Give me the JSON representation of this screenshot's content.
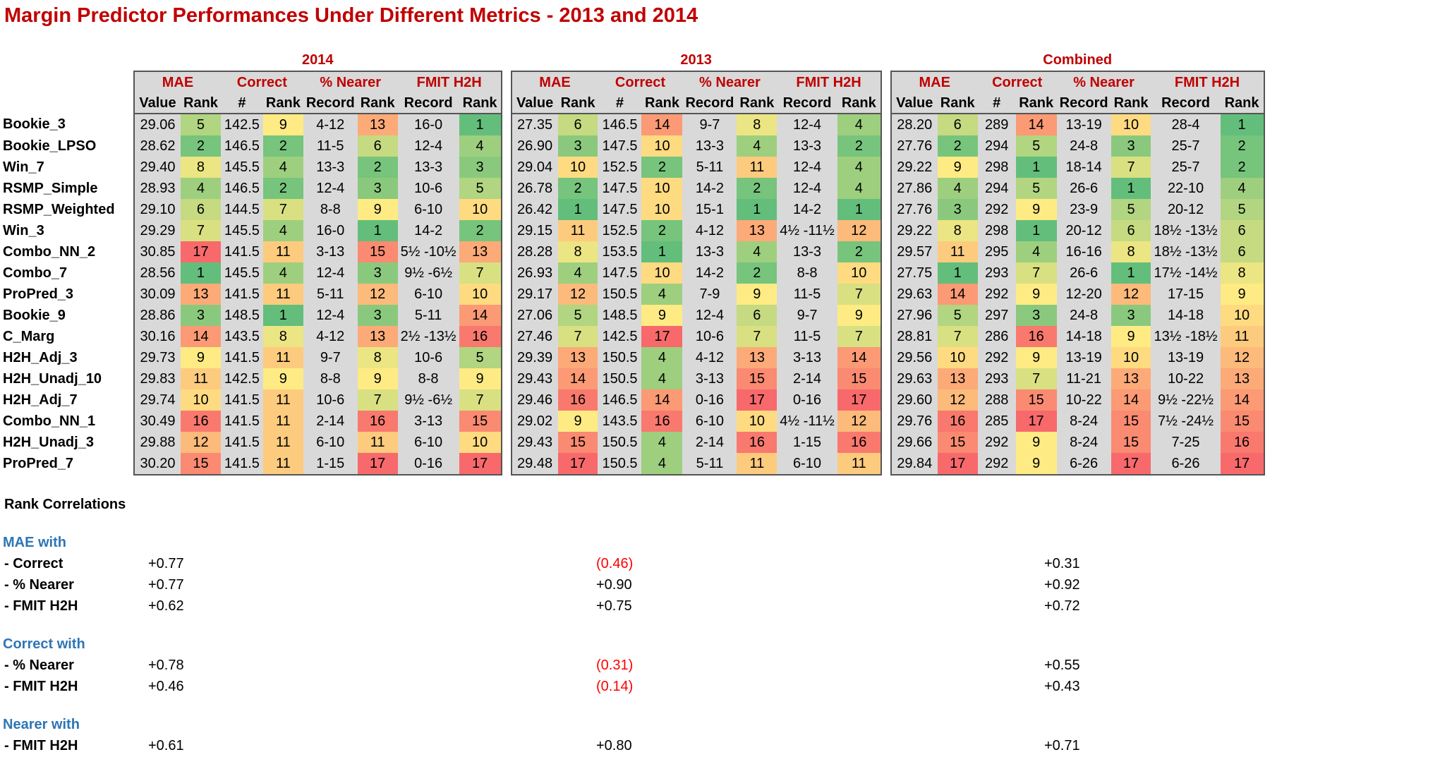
{
  "title": "Margin Predictor Performances Under Different Metrics - 2013 and 2014",
  "groups": [
    "2014",
    "2013",
    "Combined"
  ],
  "metric_headers": [
    "MAE",
    "Correct",
    "% Nearer",
    "FMIT H2H"
  ],
  "sub_headers": [
    "Value",
    "Rank",
    "#",
    "Rank",
    "Record",
    "Rank",
    "Record",
    "Rank"
  ],
  "rows": [
    {
      "name": "Bookie_3",
      "g": [
        [
          "29.06",
          "5",
          "142.5",
          "9",
          "4-12",
          "13",
          "16-0",
          "1"
        ],
        [
          "27.35",
          "6",
          "146.5",
          "14",
          "9-7",
          "8",
          "12-4",
          "4"
        ],
        [
          "28.20",
          "6",
          "289",
          "14",
          "13-19",
          "10",
          "28-4",
          "1"
        ]
      ]
    },
    {
      "name": "Bookie_LPSO",
      "g": [
        [
          "28.62",
          "2",
          "146.5",
          "2",
          "11-5",
          "6",
          "12-4",
          "4"
        ],
        [
          "26.90",
          "3",
          "147.5",
          "10",
          "13-3",
          "4",
          "13-3",
          "2"
        ],
        [
          "27.76",
          "2",
          "294",
          "5",
          "24-8",
          "3",
          "25-7",
          "2"
        ]
      ]
    },
    {
      "name": "Win_7",
      "g": [
        [
          "29.40",
          "8",
          "145.5",
          "4",
          "13-3",
          "2",
          "13-3",
          "3"
        ],
        [
          "29.04",
          "10",
          "152.5",
          "2",
          "5-11",
          "11",
          "12-4",
          "4"
        ],
        [
          "29.22",
          "9",
          "298",
          "1",
          "18-14",
          "7",
          "25-7",
          "2"
        ]
      ]
    },
    {
      "name": "RSMP_Simple",
      "g": [
        [
          "28.93",
          "4",
          "146.5",
          "2",
          "12-4",
          "3",
          "10-6",
          "5"
        ],
        [
          "26.78",
          "2",
          "147.5",
          "10",
          "14-2",
          "2",
          "12-4",
          "4"
        ],
        [
          "27.86",
          "4",
          "294",
          "5",
          "26-6",
          "1",
          "22-10",
          "4"
        ]
      ]
    },
    {
      "name": "RSMP_Weighted",
      "g": [
        [
          "29.10",
          "6",
          "144.5",
          "7",
          "8-8",
          "9",
          "6-10",
          "10"
        ],
        [
          "26.42",
          "1",
          "147.5",
          "10",
          "15-1",
          "1",
          "14-2",
          "1"
        ],
        [
          "27.76",
          "3",
          "292",
          "9",
          "23-9",
          "5",
          "20-12",
          "5"
        ]
      ]
    },
    {
      "name": "Win_3",
      "g": [
        [
          "29.29",
          "7",
          "145.5",
          "4",
          "16-0",
          "1",
          "14-2",
          "2"
        ],
        [
          "29.15",
          "11",
          "152.5",
          "2",
          "4-12",
          "13",
          "4½ -11½",
          "12"
        ],
        [
          "29.22",
          "8",
          "298",
          "1",
          "20-12",
          "6",
          "18½ -13½",
          "6"
        ]
      ]
    },
    {
      "name": "Combo_NN_2",
      "g": [
        [
          "30.85",
          "17",
          "141.5",
          "11",
          "3-13",
          "15",
          "5½ -10½",
          "13"
        ],
        [
          "28.28",
          "8",
          "153.5",
          "1",
          "13-3",
          "4",
          "13-3",
          "2"
        ],
        [
          "29.57",
          "11",
          "295",
          "4",
          "16-16",
          "8",
          "18½ -13½",
          "6"
        ]
      ]
    },
    {
      "name": "Combo_7",
      "g": [
        [
          "28.56",
          "1",
          "145.5",
          "4",
          "12-4",
          "3",
          "9½ -6½",
          "7"
        ],
        [
          "26.93",
          "4",
          "147.5",
          "10",
          "14-2",
          "2",
          "8-8",
          "10"
        ],
        [
          "27.75",
          "1",
          "293",
          "7",
          "26-6",
          "1",
          "17½ -14½",
          "8"
        ]
      ]
    },
    {
      "name": "ProPred_3",
      "g": [
        [
          "30.09",
          "13",
          "141.5",
          "11",
          "5-11",
          "12",
          "6-10",
          "10"
        ],
        [
          "29.17",
          "12",
          "150.5",
          "4",
          "7-9",
          "9",
          "11-5",
          "7"
        ],
        [
          "29.63",
          "14",
          "292",
          "9",
          "12-20",
          "12",
          "17-15",
          "9"
        ]
      ]
    },
    {
      "name": "Bookie_9",
      "g": [
        [
          "28.86",
          "3",
          "148.5",
          "1",
          "12-4",
          "3",
          "5-11",
          "14"
        ],
        [
          "27.06",
          "5",
          "148.5",
          "9",
          "12-4",
          "6",
          "9-7",
          "9"
        ],
        [
          "27.96",
          "5",
          "297",
          "3",
          "24-8",
          "3",
          "14-18",
          "10"
        ]
      ]
    },
    {
      "name": "C_Marg",
      "g": [
        [
          "30.16",
          "14",
          "143.5",
          "8",
          "4-12",
          "13",
          "2½ -13½",
          "16"
        ],
        [
          "27.46",
          "7",
          "142.5",
          "17",
          "10-6",
          "7",
          "11-5",
          "7"
        ],
        [
          "28.81",
          "7",
          "286",
          "16",
          "14-18",
          "9",
          "13½ -18½",
          "11"
        ]
      ]
    },
    {
      "name": "H2H_Adj_3",
      "g": [
        [
          "29.73",
          "9",
          "141.5",
          "11",
          "9-7",
          "8",
          "10-6",
          "5"
        ],
        [
          "29.39",
          "13",
          "150.5",
          "4",
          "4-12",
          "13",
          "3-13",
          "14"
        ],
        [
          "29.56",
          "10",
          "292",
          "9",
          "13-19",
          "10",
          "13-19",
          "12"
        ]
      ]
    },
    {
      "name": "H2H_Unadj_10",
      "g": [
        [
          "29.83",
          "11",
          "142.5",
          "9",
          "8-8",
          "9",
          "8-8",
          "9"
        ],
        [
          "29.43",
          "14",
          "150.5",
          "4",
          "3-13",
          "15",
          "2-14",
          "15"
        ],
        [
          "29.63",
          "13",
          "293",
          "7",
          "11-21",
          "13",
          "10-22",
          "13"
        ]
      ]
    },
    {
      "name": "H2H_Adj_7",
      "g": [
        [
          "29.74",
          "10",
          "141.5",
          "11",
          "10-6",
          "7",
          "9½ -6½",
          "7"
        ],
        [
          "29.46",
          "16",
          "146.5",
          "14",
          "0-16",
          "17",
          "0-16",
          "17"
        ],
        [
          "29.60",
          "12",
          "288",
          "15",
          "10-22",
          "14",
          "9½ -22½",
          "14"
        ]
      ]
    },
    {
      "name": "Combo_NN_1",
      "g": [
        [
          "30.49",
          "16",
          "141.5",
          "11",
          "2-14",
          "16",
          "3-13",
          "15"
        ],
        [
          "29.02",
          "9",
          "143.5",
          "16",
          "6-10",
          "10",
          "4½ -11½",
          "12"
        ],
        [
          "29.76",
          "16",
          "285",
          "17",
          "8-24",
          "15",
          "7½ -24½",
          "15"
        ]
      ]
    },
    {
      "name": "H2H_Unadj_3",
      "g": [
        [
          "29.88",
          "12",
          "141.5",
          "11",
          "6-10",
          "11",
          "6-10",
          "10"
        ],
        [
          "29.43",
          "15",
          "150.5",
          "4",
          "2-14",
          "16",
          "1-15",
          "16"
        ],
        [
          "29.66",
          "15",
          "292",
          "9",
          "8-24",
          "15",
          "7-25",
          "16"
        ]
      ]
    },
    {
      "name": "ProPred_7",
      "g": [
        [
          "30.20",
          "15",
          "141.5",
          "11",
          "1-15",
          "17",
          "0-16",
          "17"
        ],
        [
          "29.48",
          "17",
          "150.5",
          "4",
          "5-11",
          "11",
          "6-10",
          "11"
        ],
        [
          "29.84",
          "17",
          "292",
          "9",
          "6-26",
          "17",
          "6-26",
          "17"
        ]
      ]
    }
  ],
  "rank_scale": {
    "low_color": "#63be7b",
    "mid_color": "#ffeb84",
    "high_color": "#f8696b",
    "min_rank": 1,
    "mid_rank": 9,
    "max_rank": 17
  },
  "correlations": {
    "heading": "Rank Correlations",
    "sections": [
      {
        "title": "MAE with",
        "rows": [
          {
            "label": " - Correct",
            "values": [
              "+0.77",
              "(0.46)",
              "+0.31"
            ]
          },
          {
            "label": " - % Nearer",
            "values": [
              "+0.77",
              "+0.90",
              "+0.92"
            ]
          },
          {
            "label": " - FMIT H2H",
            "values": [
              "+0.62",
              "+0.75",
              "+0.72"
            ]
          }
        ]
      },
      {
        "title": "Correct with",
        "rows": [
          {
            "label": " - % Nearer",
            "values": [
              "+0.78",
              "(0.31)",
              "+0.55"
            ]
          },
          {
            "label": " - FMIT H2H",
            "values": [
              "+0.46",
              "(0.14)",
              "+0.43"
            ]
          }
        ]
      },
      {
        "title": "Nearer with",
        "rows": [
          {
            "label": " - FMIT H2H",
            "values": [
              "+0.61",
              "+0.80",
              "+0.71"
            ]
          }
        ]
      }
    ]
  }
}
